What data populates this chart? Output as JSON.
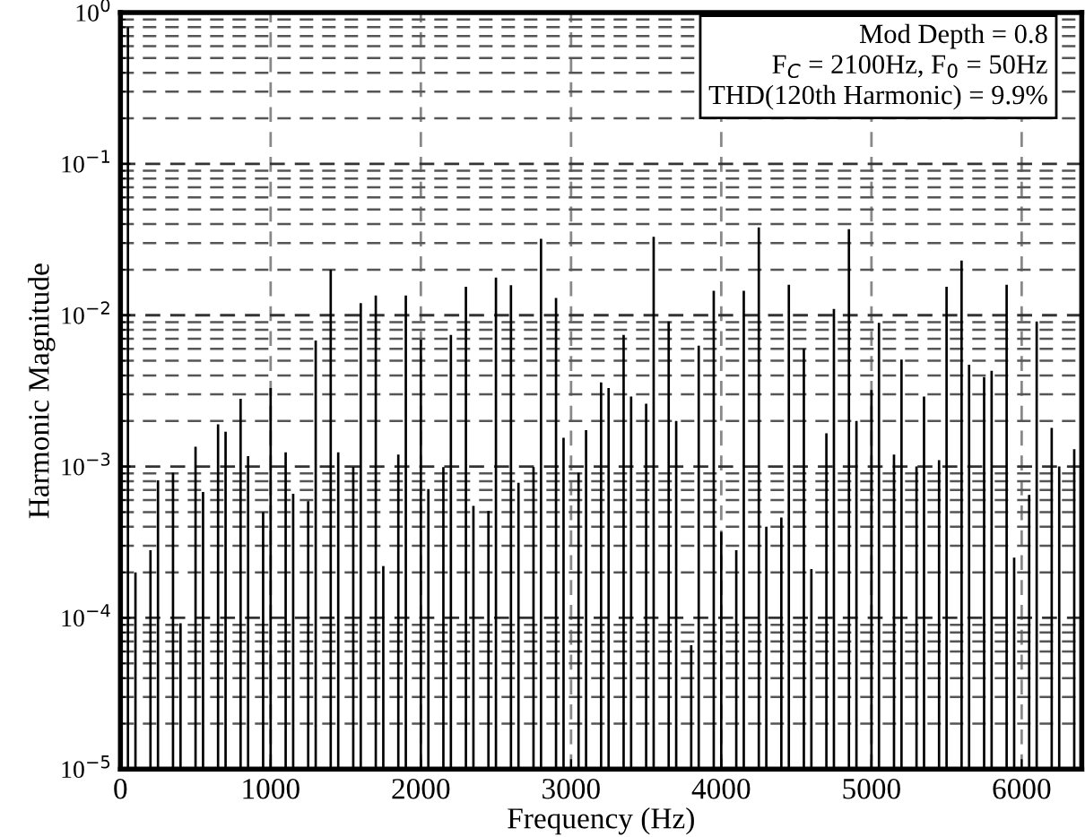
{
  "chart_data": {
    "type": "bar",
    "xlabel": "Frequency (Hz)",
    "ylabel": "Harmonic Magnitude",
    "x": [
      50,
      100,
      200,
      250,
      350,
      400,
      500,
      550,
      650,
      700,
      800,
      850,
      950,
      1000,
      1100,
      1150,
      1250,
      1300,
      1400,
      1450,
      1550,
      1600,
      1700,
      1750,
      1850,
      1900,
      2000,
      2050,
      2150,
      2200,
      2300,
      2350,
      2450,
      2500,
      2600,
      2650,
      2750,
      2800,
      2900,
      2950,
      3050,
      3100,
      3200,
      3250,
      3350,
      3400,
      3500,
      3550,
      3650,
      3700,
      3800,
      3850,
      3950,
      4000,
      4100,
      4150,
      4250,
      4300,
      4400,
      4450,
      4550,
      4600,
      4700,
      4750,
      4850,
      4900,
      5000,
      5050,
      5150,
      5200,
      5300,
      5350,
      5450,
      5500,
      5600,
      5650,
      5750,
      5800,
      5900,
      5950,
      6050,
      6100,
      6200,
      6250,
      6350
    ],
    "values": [
      0.8,
      0.0002,
      0.00028,
      0.00081,
      0.00091,
      9.2e-05,
      0.00135,
      0.00068,
      0.0019,
      0.0017,
      0.0028,
      0.00117,
      0.0005,
      0.0033,
      0.00124,
      0.00066,
      0.00059,
      0.0068,
      0.02,
      0.00124,
      0.00099,
      0.012,
      0.0135,
      0.00022,
      0.0012,
      0.0135,
      0.0069,
      0.00071,
      0.00099,
      0.0074,
      0.0154,
      0.00055,
      0.00051,
      0.0177,
      0.0158,
      0.00078,
      0.00099,
      0.032,
      0.013,
      0.00155,
      0.00091,
      0.00174,
      0.0036,
      0.0033,
      0.0074,
      0.0029,
      0.0026,
      0.033,
      0.0091,
      0.002,
      6.6e-05,
      0.0063,
      0.0145,
      0.00037,
      0.00028,
      0.0145,
      0.038,
      0.0004,
      0.00046,
      0.0159,
      0.006,
      0.00021,
      0.00166,
      0.011,
      0.037,
      0.002,
      0.0032,
      0.0089,
      0.0012,
      0.0051,
      0.001,
      0.0029,
      0.0011,
      0.0154,
      0.023,
      0.0047,
      0.0039,
      0.0043,
      0.0159,
      0.00025,
      0.00065,
      0.0091,
      0.0018,
      0.001,
      0.0013
    ],
    "color": "#000000",
    "log": "y",
    "xlim": [
      0,
      6400
    ],
    "xticks": [
      0,
      1000,
      2000,
      3000,
      4000,
      5000,
      6000
    ],
    "ylim": [
      1e-05,
      1
    ],
    "yticks": [
      {
        "value": 1e-05,
        "label": "10$^{−5}$"
      },
      {
        "value": 0.0001,
        "label": "10$^{−4}$"
      },
      {
        "value": 0.001,
        "label": "10$^{−3}$"
      },
      {
        "value": 0.01,
        "label": "10$^{−2}$"
      },
      {
        "value": 0.1,
        "label": "10$^{−1}$"
      },
      {
        "value": 1,
        "label": "10$^{0}$"
      }
    ],
    "grid": true,
    "annotations": [
      "Mod Depth = 0.8",
      "F$_{C}$ = 2100Hz, F$_{0}$ = 50Hz",
      "THD(120th Harmonic) = 9.9%"
    ]
  }
}
